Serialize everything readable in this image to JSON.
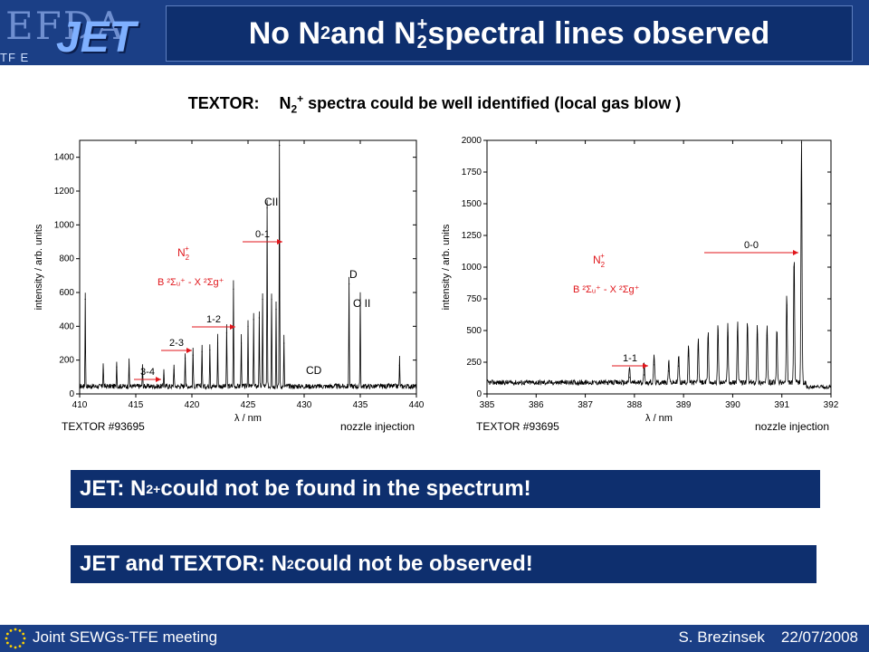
{
  "header": {
    "logo_text": "EFDA",
    "logo_jet": "JET",
    "logo_sub": "TF E",
    "title": {
      "a": "No N",
      "s1": "2",
      "b": " and N",
      "s2": "2",
      "sup": "+",
      "c": " spectral lines observed"
    }
  },
  "subtitle": {
    "machine": "TEXTOR:",
    "n": "N",
    "sub": "2",
    "sup": "+",
    "rest": " spectra could be well identified (local gas blow )"
  },
  "notes": [
    {
      "a": "JET: N",
      "sub": "2",
      "sup": "+",
      "b": " could not be found in the spectrum!"
    },
    {
      "a": "JET and TEXTOR:  N",
      "sub": "2",
      "b": " could not be observed!"
    }
  ],
  "footer": {
    "left": "Joint SEWGs-TFE meeting",
    "author": "S. Brezinsek",
    "date": "22/07/2008"
  },
  "colors": {
    "navy": "#0e2f6e",
    "bar": "#1b3f86",
    "annotation": "#e0161b"
  },
  "chart_data": [
    {
      "type": "line",
      "ylabel": "intensity / arb. units",
      "xlabel": "λ / nm",
      "shot": "TEXTOR #93695",
      "injection": "nozzle injection",
      "xlim": [
        410,
        440
      ],
      "ylim": [
        0,
        1500
      ],
      "xticks": [
        410,
        415,
        420,
        425,
        430,
        435,
        440
      ],
      "yticks": [
        0,
        200,
        400,
        600,
        800,
        1000,
        1200,
        1400
      ],
      "band_label": {
        "n": "N",
        "sub": "2",
        "sup": "+"
      },
      "transition": "B ²Σᵤ⁺ - X ²Σg⁺",
      "arrows": [
        "3-4",
        "2-3",
        "1-2",
        "0-1"
      ],
      "line_labels": [
        "CII",
        "CD",
        "D",
        "O II"
      ],
      "peaks": [
        {
          "x": 410.5,
          "y": 560
        },
        {
          "x": 412.1,
          "y": 140
        },
        {
          "x": 413.3,
          "y": 160
        },
        {
          "x": 414.4,
          "y": 150
        },
        {
          "x": 415.6,
          "y": 120
        },
        {
          "x": 417.5,
          "y": 110
        },
        {
          "x": 418.4,
          "y": 140
        },
        {
          "x": 419.4,
          "y": 210
        },
        {
          "x": 420.1,
          "y": 230
        },
        {
          "x": 420.9,
          "y": 250
        },
        {
          "x": 421.6,
          "y": 260
        },
        {
          "x": 422.3,
          "y": 300
        },
        {
          "x": 423.1,
          "y": 360
        },
        {
          "x": 423.7,
          "y": 620
        },
        {
          "x": 424.4,
          "y": 300
        },
        {
          "x": 425.0,
          "y": 400
        },
        {
          "x": 425.5,
          "y": 440
        },
        {
          "x": 426.0,
          "y": 450
        },
        {
          "x": 426.3,
          "y": 560
        },
        {
          "x": 426.7,
          "y": 1100
        },
        {
          "x": 427.1,
          "y": 560
        },
        {
          "x": 427.5,
          "y": 500
        },
        {
          "x": 427.8,
          "y": 1470
        },
        {
          "x": 428.2,
          "y": 300
        },
        {
          "x": 434.0,
          "y": 650
        },
        {
          "x": 435.0,
          "y": 560
        },
        {
          "x": 438.5,
          "y": 170
        }
      ]
    },
    {
      "type": "line",
      "ylabel": "intensity / arb. units",
      "xlabel": "λ / nm",
      "shot": "TEXTOR #93695",
      "injection": "nozzle injection",
      "xlim": [
        385,
        392
      ],
      "ylim": [
        0,
        2000
      ],
      "xticks": [
        385,
        386,
        387,
        388,
        389,
        390,
        391,
        392
      ],
      "yticks": [
        0,
        250,
        500,
        750,
        1000,
        1250,
        1500,
        1750,
        2000
      ],
      "band_label": {
        "n": "N",
        "sub": "2",
        "sup": "+"
      },
      "transition": "B ²Σᵤ⁺ - X ²Σg⁺",
      "arrows": [
        "1-1",
        "0-0"
      ],
      "peaks": [
        {
          "x": 387.9,
          "y": 130
        },
        {
          "x": 388.2,
          "y": 150
        },
        {
          "x": 388.4,
          "y": 230
        },
        {
          "x": 388.7,
          "y": 180
        },
        {
          "x": 388.9,
          "y": 220
        },
        {
          "x": 389.1,
          "y": 300
        },
        {
          "x": 389.3,
          "y": 350
        },
        {
          "x": 389.5,
          "y": 400
        },
        {
          "x": 389.7,
          "y": 460
        },
        {
          "x": 389.9,
          "y": 480
        },
        {
          "x": 390.1,
          "y": 490
        },
        {
          "x": 390.3,
          "y": 480
        },
        {
          "x": 390.5,
          "y": 470
        },
        {
          "x": 390.7,
          "y": 460
        },
        {
          "x": 390.9,
          "y": 430
        },
        {
          "x": 391.1,
          "y": 700
        },
        {
          "x": 391.25,
          "y": 1000
        },
        {
          "x": 391.4,
          "y": 1980
        }
      ]
    }
  ]
}
